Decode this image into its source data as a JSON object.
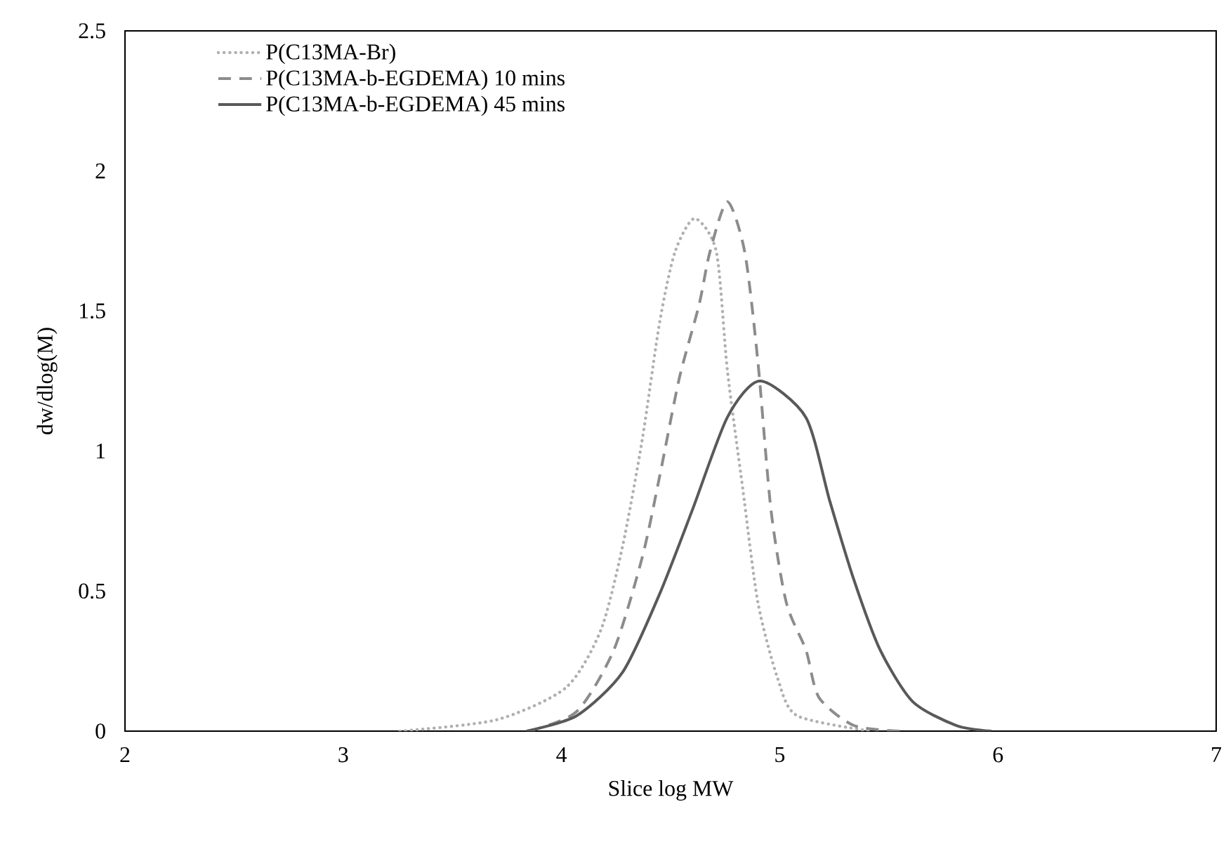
{
  "chart_data": {
    "type": "line",
    "xlabel": "Slice log MW",
    "ylabel": "dw/dlog(M)",
    "xlim": [
      2,
      7
    ],
    "xticks": [
      2,
      3,
      4,
      5,
      6,
      7
    ],
    "ylim": [
      0,
      2.5
    ],
    "yticks": [
      0,
      0.5,
      1,
      1.5,
      2,
      2.5
    ],
    "grid": false,
    "legend": "top left",
    "marker": "none",
    "series": [
      {
        "name": "P(C13MA-Br)",
        "color": "#b0b0b0",
        "line_style": "dotted",
        "x": [
          3.26,
          3.7,
          4.02,
          4.18,
          4.28,
          4.37,
          4.45,
          4.52,
          4.61,
          4.71,
          4.76,
          4.83,
          4.9,
          4.99,
          5.08,
          5.42
        ],
        "values": [
          0,
          0.04,
          0.155,
          0.36,
          0.66,
          1.04,
          1.46,
          1.71,
          1.83,
          1.71,
          1.29,
          0.87,
          0.46,
          0.19,
          0.055,
          0
        ]
      },
      {
        "name": "P(C13MA-b-EGDEMA) 10 mins",
        "color": "#8c8c8c",
        "line_style": "dashed",
        "x": [
          3.85,
          4.07,
          4.24,
          4.37,
          4.45,
          4.54,
          4.63,
          4.68,
          4.76,
          4.84,
          4.9,
          4.96,
          5.03,
          5.12,
          5.18,
          5.34,
          5.55
        ],
        "values": [
          0,
          0.07,
          0.29,
          0.62,
          0.91,
          1.26,
          1.52,
          1.71,
          1.89,
          1.71,
          1.32,
          0.79,
          0.46,
          0.29,
          0.12,
          0.02,
          0
        ]
      },
      {
        "name": "P(C13MA-b-EGDEMA) 45 mins",
        "color": "#595959",
        "line_style": "solid",
        "x": [
          3.84,
          4.07,
          4.28,
          4.45,
          4.6,
          4.76,
          4.91,
          5.12,
          5.23,
          5.34,
          5.46,
          5.61,
          5.81,
          5.97
        ],
        "values": [
          0,
          0.055,
          0.21,
          0.49,
          0.79,
          1.12,
          1.25,
          1.12,
          0.82,
          0.54,
          0.29,
          0.105,
          0.02,
          0
        ]
      }
    ]
  }
}
